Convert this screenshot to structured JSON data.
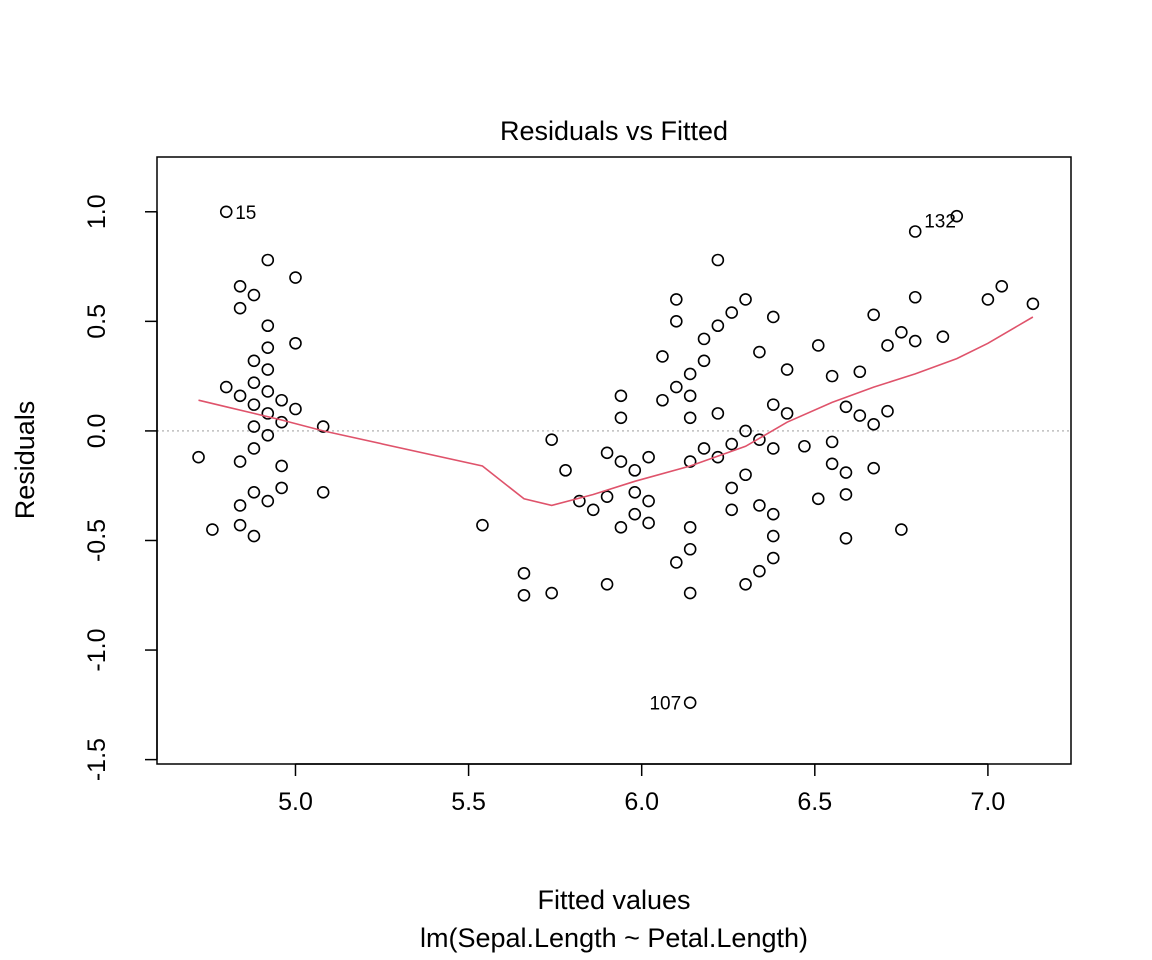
{
  "chart_data": {
    "type": "scatter",
    "title": "Residuals vs Fitted",
    "xlabel": "Fitted values",
    "subtitle": "lm(Sepal.Length ~ Petal.Length)",
    "ylabel": "Residuals",
    "xlim": [
      4.6,
      7.24
    ],
    "ylim": [
      -1.52,
      1.25
    ],
    "x_ticks": [
      5.0,
      5.5,
      6.0,
      6.5,
      7.0
    ],
    "x_tick_labels": [
      "5.0",
      "5.5",
      "6.0",
      "6.5",
      "7.0"
    ],
    "y_ticks": [
      -1.5,
      -1.0,
      -0.5,
      0.0,
      0.5,
      1.0
    ],
    "y_tick_labels": [
      "-1.5",
      "-1.0",
      "-0.5",
      "0.0",
      "0.5",
      "1.0"
    ],
    "reference_line": {
      "y": 0,
      "style": "dotted",
      "color": "#bebebe"
    },
    "smoother_color": "#df536b",
    "point_color": "#000000",
    "points": [
      [
        4.72,
        -0.12
      ],
      [
        4.76,
        -0.45
      ],
      [
        4.8,
        0.2
      ],
      [
        4.8,
        1.0
      ],
      [
        4.84,
        0.66
      ],
      [
        4.84,
        0.56
      ],
      [
        4.84,
        0.16
      ],
      [
        4.84,
        -0.14
      ],
      [
        4.84,
        -0.34
      ],
      [
        4.84,
        -0.43
      ],
      [
        4.88,
        0.62
      ],
      [
        4.88,
        0.32
      ],
      [
        4.88,
        0.22
      ],
      [
        4.88,
        0.12
      ],
      [
        4.88,
        0.02
      ],
      [
        4.88,
        -0.08
      ],
      [
        4.88,
        -0.28
      ],
      [
        4.88,
        -0.48
      ],
      [
        4.92,
        0.78
      ],
      [
        4.92,
        0.48
      ],
      [
        4.92,
        0.38
      ],
      [
        4.92,
        0.28
      ],
      [
        4.92,
        0.18
      ],
      [
        4.92,
        0.08
      ],
      [
        4.92,
        -0.02
      ],
      [
        4.92,
        -0.32
      ],
      [
        4.96,
        0.14
      ],
      [
        4.96,
        0.04
      ],
      [
        4.96,
        -0.16
      ],
      [
        4.96,
        -0.26
      ],
      [
        5.0,
        0.7
      ],
      [
        5.0,
        0.4
      ],
      [
        5.0,
        0.1
      ],
      [
        5.08,
        0.02
      ],
      [
        5.08,
        -0.28
      ],
      [
        5.54,
        -0.43
      ],
      [
        5.66,
        -0.65
      ],
      [
        5.66,
        -0.75
      ],
      [
        5.74,
        -0.04
      ],
      [
        5.74,
        -0.74
      ],
      [
        5.78,
        -0.18
      ],
      [
        5.82,
        -0.32
      ],
      [
        5.86,
        -0.36
      ],
      [
        5.9,
        -0.1
      ],
      [
        5.9,
        -0.3
      ],
      [
        5.9,
        -0.7
      ],
      [
        5.94,
        0.16
      ],
      [
        5.94,
        0.06
      ],
      [
        5.94,
        -0.14
      ],
      [
        5.94,
        -0.44
      ],
      [
        5.98,
        -0.18
      ],
      [
        5.98,
        -0.28
      ],
      [
        5.98,
        -0.38
      ],
      [
        6.02,
        -0.12
      ],
      [
        6.02,
        -0.32
      ],
      [
        6.02,
        -0.42
      ],
      [
        6.06,
        0.34
      ],
      [
        6.06,
        0.14
      ],
      [
        6.1,
        0.6
      ],
      [
        6.1,
        0.5
      ],
      [
        6.1,
        0.2
      ],
      [
        6.1,
        -0.6
      ],
      [
        6.14,
        0.26
      ],
      [
        6.14,
        0.16
      ],
      [
        6.14,
        0.06
      ],
      [
        6.14,
        -0.14
      ],
      [
        6.14,
        -0.44
      ],
      [
        6.14,
        -0.54
      ],
      [
        6.14,
        -0.74
      ],
      [
        6.14,
        -1.24
      ],
      [
        6.18,
        0.42
      ],
      [
        6.18,
        0.32
      ],
      [
        6.18,
        -0.08
      ],
      [
        6.22,
        0.78
      ],
      [
        6.22,
        0.48
      ],
      [
        6.22,
        0.08
      ],
      [
        6.22,
        -0.12
      ],
      [
        6.26,
        0.54
      ],
      [
        6.26,
        -0.06
      ],
      [
        6.26,
        -0.26
      ],
      [
        6.26,
        -0.36
      ],
      [
        6.3,
        0.6
      ],
      [
        6.3,
        0.0
      ],
      [
        6.3,
        -0.2
      ],
      [
        6.3,
        -0.7
      ],
      [
        6.34,
        0.36
      ],
      [
        6.34,
        -0.04
      ],
      [
        6.34,
        -0.34
      ],
      [
        6.34,
        -0.64
      ],
      [
        6.38,
        0.52
      ],
      [
        6.38,
        0.12
      ],
      [
        6.38,
        -0.08
      ],
      [
        6.38,
        -0.38
      ],
      [
        6.38,
        -0.48
      ],
      [
        6.38,
        -0.58
      ],
      [
        6.42,
        0.28
      ],
      [
        6.42,
        0.08
      ],
      [
        6.47,
        -0.07
      ],
      [
        6.51,
        0.39
      ],
      [
        6.51,
        -0.31
      ],
      [
        6.55,
        0.25
      ],
      [
        6.55,
        -0.05
      ],
      [
        6.55,
        -0.15
      ],
      [
        6.59,
        0.11
      ],
      [
        6.59,
        -0.19
      ],
      [
        6.59,
        -0.29
      ],
      [
        6.59,
        -0.49
      ],
      [
        6.63,
        0.27
      ],
      [
        6.63,
        0.07
      ],
      [
        6.67,
        0.53
      ],
      [
        6.67,
        0.03
      ],
      [
        6.67,
        -0.17
      ],
      [
        6.71,
        0.39
      ],
      [
        6.71,
        0.09
      ],
      [
        6.75,
        0.45
      ],
      [
        6.75,
        -0.45
      ],
      [
        6.79,
        0.91
      ],
      [
        6.79,
        0.61
      ],
      [
        6.79,
        0.41
      ],
      [
        6.87,
        0.43
      ],
      [
        6.91,
        0.98
      ],
      [
        7.0,
        0.6
      ],
      [
        7.04,
        0.66
      ],
      [
        7.13,
        0.58
      ]
    ],
    "labels": [
      {
        "text": "15",
        "x": 4.8,
        "y": 1.0,
        "side": "right"
      },
      {
        "text": "132",
        "x": 6.79,
        "y": 0.96,
        "side": "right"
      },
      {
        "text": "107",
        "x": 6.14,
        "y": -1.24,
        "side": "left"
      }
    ],
    "smoother": [
      [
        4.72,
        0.14
      ],
      [
        4.8,
        0.11
      ],
      [
        4.88,
        0.08
      ],
      [
        4.96,
        0.05
      ],
      [
        5.08,
        0.0
      ],
      [
        5.54,
        -0.16
      ],
      [
        5.66,
        -0.31
      ],
      [
        5.74,
        -0.34
      ],
      [
        5.86,
        -0.29
      ],
      [
        5.98,
        -0.23
      ],
      [
        6.14,
        -0.16
      ],
      [
        6.3,
        -0.07
      ],
      [
        6.42,
        0.04
      ],
      [
        6.55,
        0.13
      ],
      [
        6.67,
        0.2
      ],
      [
        6.79,
        0.26
      ],
      [
        6.91,
        0.33
      ],
      [
        7.0,
        0.4
      ],
      [
        7.13,
        0.52
      ]
    ]
  }
}
